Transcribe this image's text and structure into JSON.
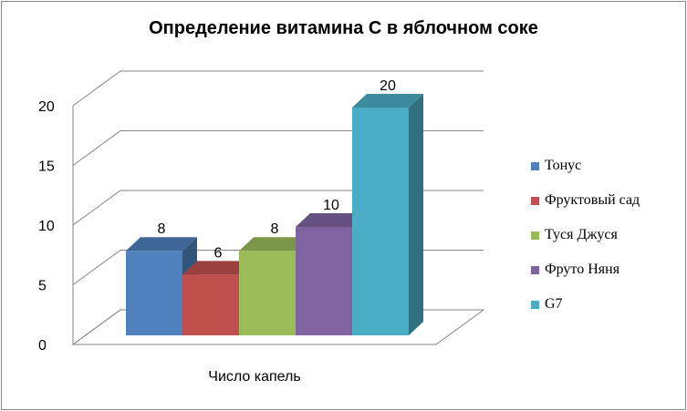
{
  "chart_data": {
    "type": "bar",
    "title": "Определение витамина С в яблочном соке",
    "xlabel": "Число капель",
    "ylabel": "",
    "ylim": [
      0,
      20
    ],
    "yticks": [
      0,
      5,
      10,
      15,
      20
    ],
    "categories": [
      "Число капель"
    ],
    "series": [
      {
        "name": "Тонус",
        "values": [
          8
        ],
        "color": "#4F81BD"
      },
      {
        "name": "Фруктовый сад",
        "values": [
          6
        ],
        "color": "#C0504D"
      },
      {
        "name": "Туся Джуся",
        "values": [
          8
        ],
        "color": "#9BBB59"
      },
      {
        "name": "Фруто Няня",
        "values": [
          10
        ],
        "color": "#8064A2"
      },
      {
        "name": "G7",
        "values": [
          20
        ],
        "color": "#4BACC6"
      }
    ],
    "grid": true,
    "legend_position": "right",
    "style": "3d-column"
  }
}
